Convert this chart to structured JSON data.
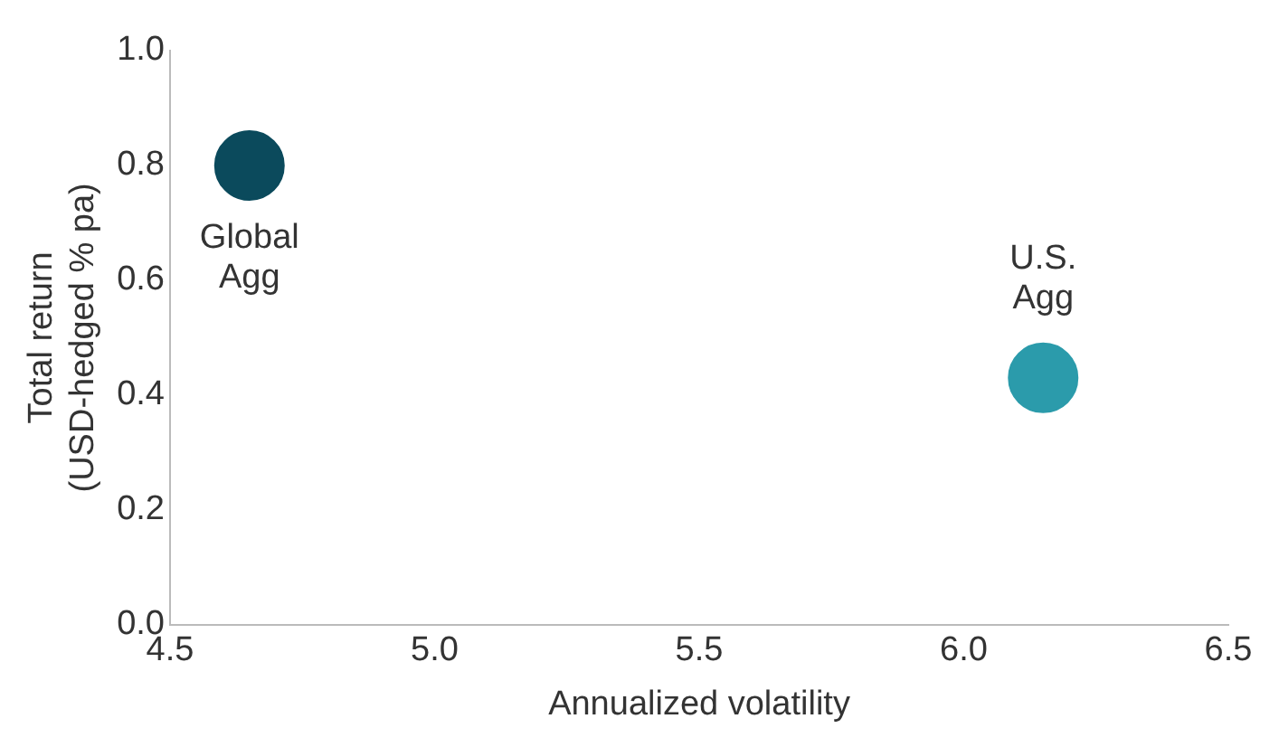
{
  "chart_data": {
    "type": "scatter",
    "xlabel": "Annualized volatility",
    "ylabel": "Total return\n(USD-hedged % pa)",
    "series": [
      {
        "name": "Global Agg",
        "color": "#0b4a5c",
        "x": [
          4.65
        ],
        "values": [
          0.8
        ]
      },
      {
        "name": "U.S. Agg",
        "color": "#2b9bab",
        "x": [
          6.15
        ],
        "values": [
          0.43
        ]
      }
    ],
    "xlim": [
      4.5,
      6.5
    ],
    "xticks": [
      4.5,
      {
        "value": 5,
        "label": "5.0"
      },
      5.5,
      {
        "value": 6,
        "label": "6.0"
      },
      6.5
    ],
    "ylim": [
      0,
      1
    ],
    "yticks": [
      {
        "value": 0,
        "label": "0.0"
      },
      0.2,
      0.4,
      0.6,
      0.8,
      {
        "value": 1,
        "label": "1.0"
      }
    ],
    "grid": false,
    "legend": false,
    "marker": "circle"
  }
}
